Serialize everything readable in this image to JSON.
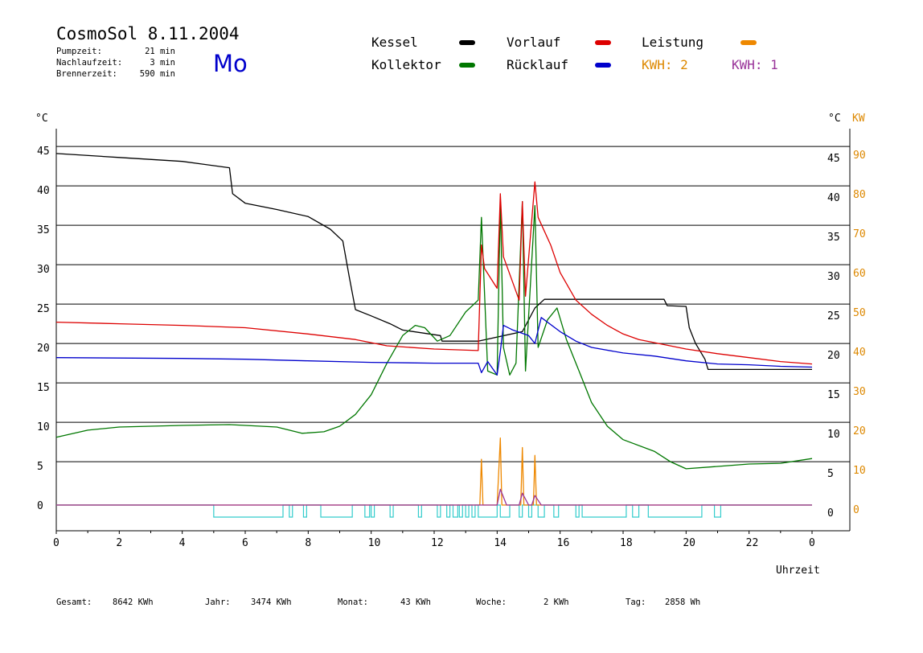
{
  "header": {
    "title": "CosmoSol 8.11.2004",
    "weekday": "Mo",
    "stats": [
      {
        "label": "Pumpzeit:",
        "value": "21 min"
      },
      {
        "label": "Nachlaufzeit:",
        "value": "3 min"
      },
      {
        "label": "Brennerzeit:",
        "value": "590 min"
      }
    ]
  },
  "legend": [
    {
      "label": "Kessel",
      "color": "#000000"
    },
    {
      "label": "Kollektor",
      "color": "#007700"
    },
    {
      "label": "Vorlauf",
      "color": "#dd0000"
    },
    {
      "label": "Rücklauf",
      "color": "#0000cc"
    },
    {
      "label": "Leistung",
      "color": "#ee8800"
    }
  ],
  "kwh_labels": [
    {
      "text": "KWH: 2",
      "color": "#dd8800"
    },
    {
      "text": "KWH: 1",
      "color": "#993399"
    }
  ],
  "footer": [
    {
      "label": "Gesamt:",
      "value": "8642 KWh"
    },
    {
      "label": "Jahr:",
      "value": "3474 KWh"
    },
    {
      "label": "Monat:",
      "value": "43 KWh"
    },
    {
      "label": "Woche:",
      "value": "2 KWh"
    },
    {
      "label": "Tag:",
      "value": "2858 Wh"
    }
  ],
  "chart_data": {
    "type": "line",
    "xlabel": "Uhrzeit",
    "ylabel_left": "°C",
    "ylabel_right": "°C",
    "ylabel_right2": "KW",
    "x_range": [
      0,
      24
    ],
    "x_ticks": [
      "0",
      "2",
      "4",
      "6",
      "8",
      "10",
      "12",
      "14",
      "16",
      "18",
      "20",
      "22",
      "0"
    ],
    "y_range": [
      0,
      47
    ],
    "y_ticks": [
      "0",
      "5",
      "10",
      "15",
      "20",
      "25",
      "30",
      "35",
      "40",
      "45"
    ],
    "y2_ticks": [
      "0",
      "10",
      "20",
      "30",
      "40",
      "50",
      "60",
      "70",
      "80",
      "90"
    ],
    "grid": "horizontal",
    "series": [
      {
        "name": "Kessel",
        "color": "#000000",
        "points": [
          [
            0,
            44.6
          ],
          [
            2,
            44.1
          ],
          [
            4,
            43.6
          ],
          [
            5.5,
            42.8
          ],
          [
            5.6,
            39.5
          ],
          [
            6,
            38.3
          ],
          [
            7,
            37.5
          ],
          [
            8,
            36.6
          ],
          [
            8.7,
            35
          ],
          [
            9.1,
            33.5
          ],
          [
            9.3,
            29
          ],
          [
            9.5,
            24.8
          ],
          [
            10,
            24
          ],
          [
            10.6,
            23
          ],
          [
            11,
            22.2
          ],
          [
            12.2,
            21.5
          ],
          [
            12.25,
            20.8
          ],
          [
            13.4,
            20.8
          ],
          [
            14.8,
            22
          ],
          [
            15.2,
            25
          ],
          [
            15.5,
            26.1
          ],
          [
            19.3,
            26.1
          ],
          [
            19.4,
            25.3
          ],
          [
            20,
            25.2
          ],
          [
            20.1,
            22.5
          ],
          [
            20.3,
            20.5
          ],
          [
            20.6,
            18.5
          ],
          [
            20.7,
            17.2
          ],
          [
            24,
            17.2
          ]
        ]
      },
      {
        "name": "Kollektor",
        "color": "#007700",
        "points": [
          [
            0,
            8.6
          ],
          [
            1,
            9.5
          ],
          [
            2,
            9.9
          ],
          [
            4,
            10.1
          ],
          [
            5.5,
            10.2
          ],
          [
            7,
            9.9
          ],
          [
            7.8,
            9.1
          ],
          [
            8.5,
            9.3
          ],
          [
            9,
            10
          ],
          [
            9.5,
            11.5
          ],
          [
            10,
            14
          ],
          [
            10.5,
            18
          ],
          [
            11,
            21.5
          ],
          [
            11.4,
            22.8
          ],
          [
            11.7,
            22.5
          ],
          [
            12.1,
            20.8
          ],
          [
            12.5,
            21.5
          ],
          [
            13,
            24.5
          ],
          [
            13.4,
            26
          ],
          [
            13.5,
            36.5
          ],
          [
            13.7,
            17
          ],
          [
            14,
            16.5
          ],
          [
            14.1,
            38.5
          ],
          [
            14.2,
            20
          ],
          [
            14.4,
            16.5
          ],
          [
            14.6,
            18
          ],
          [
            14.8,
            38.5
          ],
          [
            14.9,
            17
          ],
          [
            15.2,
            38
          ],
          [
            15.3,
            20
          ],
          [
            15.6,
            23.5
          ],
          [
            15.9,
            25
          ],
          [
            16.2,
            21
          ],
          [
            16.6,
            17
          ],
          [
            17,
            13
          ],
          [
            17.5,
            10
          ],
          [
            18,
            8.3
          ],
          [
            19,
            6.8
          ],
          [
            19.5,
            5.5
          ],
          [
            20,
            4.6
          ],
          [
            21,
            4.9
          ],
          [
            22,
            5.2
          ],
          [
            23,
            5.3
          ],
          [
            24,
            5.9
          ]
        ]
      },
      {
        "name": "Vorlauf",
        "color": "#dd0000",
        "points": [
          [
            0,
            23.2
          ],
          [
            2,
            23.0
          ],
          [
            4,
            22.8
          ],
          [
            6,
            22.5
          ],
          [
            8,
            21.7
          ],
          [
            9.5,
            21.0
          ],
          [
            10.5,
            20.2
          ],
          [
            12,
            19.8
          ],
          [
            13.4,
            19.6
          ],
          [
            13.5,
            33
          ],
          [
            13.6,
            30
          ],
          [
            14,
            27.5
          ],
          [
            14.1,
            39.5
          ],
          [
            14.2,
            31.5
          ],
          [
            14.7,
            26
          ],
          [
            14.8,
            38.5
          ],
          [
            14.9,
            26.5
          ],
          [
            15.2,
            41
          ],
          [
            15.3,
            36.5
          ],
          [
            15.7,
            33
          ],
          [
            16,
            29.5
          ],
          [
            16.5,
            26
          ],
          [
            17,
            24.2
          ],
          [
            17.5,
            22.8
          ],
          [
            18,
            21.7
          ],
          [
            18.5,
            21
          ],
          [
            19,
            20.6
          ],
          [
            20,
            19.8
          ],
          [
            21,
            19.2
          ],
          [
            22,
            18.7
          ],
          [
            23,
            18.2
          ],
          [
            24,
            17.9
          ]
        ]
      },
      {
        "name": "Rücklauf",
        "color": "#0000cc",
        "points": [
          [
            0,
            18.7
          ],
          [
            4,
            18.6
          ],
          [
            6,
            18.5
          ],
          [
            8,
            18.3
          ],
          [
            10,
            18.1
          ],
          [
            12,
            18.0
          ],
          [
            13.4,
            18.0
          ],
          [
            13.5,
            16.8
          ],
          [
            13.7,
            18.2
          ],
          [
            14.0,
            16.5
          ],
          [
            14.1,
            19.5
          ],
          [
            14.2,
            22.8
          ],
          [
            14.5,
            22.2
          ],
          [
            15.0,
            21.5
          ],
          [
            15.2,
            20.5
          ],
          [
            15.4,
            23.8
          ],
          [
            16,
            22
          ],
          [
            16.5,
            20.8
          ],
          [
            17,
            20
          ],
          [
            18,
            19.3
          ],
          [
            19,
            18.9
          ],
          [
            20,
            18.3
          ],
          [
            21,
            17.9
          ],
          [
            22,
            17.8
          ],
          [
            23,
            17.6
          ],
          [
            24,
            17.5
          ]
        ]
      },
      {
        "name": "Leistung",
        "color": "#ee8800",
        "points": [
          [
            0,
            0
          ],
          [
            13.45,
            0
          ],
          [
            13.5,
            5.8
          ],
          [
            13.55,
            0
          ],
          [
            14.0,
            0
          ],
          [
            14.1,
            8.5
          ],
          [
            14.15,
            0
          ],
          [
            14.75,
            0
          ],
          [
            14.8,
            7.3
          ],
          [
            14.85,
            0
          ],
          [
            15.15,
            0
          ],
          [
            15.2,
            6.3
          ],
          [
            15.25,
            0
          ],
          [
            24,
            0
          ]
        ]
      },
      {
        "name": "KWH: 1",
        "color": "#993399",
        "points": [
          [
            0,
            0
          ],
          [
            14.0,
            0
          ],
          [
            14.1,
            2
          ],
          [
            14.3,
            0
          ],
          [
            14.7,
            0
          ],
          [
            14.8,
            1.5
          ],
          [
            15.0,
            0
          ],
          [
            15.1,
            0
          ],
          [
            15.2,
            1.2
          ],
          [
            15.4,
            0
          ],
          [
            24,
            0
          ]
        ]
      }
    ],
    "pump_intervals": [
      [
        5.0,
        7.2
      ],
      [
        7.4,
        7.5
      ],
      [
        7.85,
        7.95
      ],
      [
        8.4,
        9.4
      ],
      [
        9.8,
        9.95
      ],
      [
        10.0,
        10.1
      ],
      [
        10.6,
        10.7
      ],
      [
        11.5,
        11.6
      ],
      [
        12.1,
        12.2
      ],
      [
        12.4,
        12.5
      ],
      [
        12.6,
        12.75
      ],
      [
        12.8,
        12.9
      ],
      [
        13.0,
        13.1
      ],
      [
        13.2,
        13.3
      ],
      [
        13.4,
        14.0
      ],
      [
        14.1,
        14.4
      ],
      [
        14.7,
        14.8
      ],
      [
        15.0,
        15.1
      ],
      [
        15.3,
        15.5
      ],
      [
        15.8,
        15.95
      ],
      [
        16.5,
        16.6
      ],
      [
        16.7,
        18.1
      ],
      [
        18.3,
        18.5
      ],
      [
        18.8,
        20.5
      ],
      [
        20.9,
        21.1
      ]
    ],
    "pump_color": "#33cccc"
  }
}
